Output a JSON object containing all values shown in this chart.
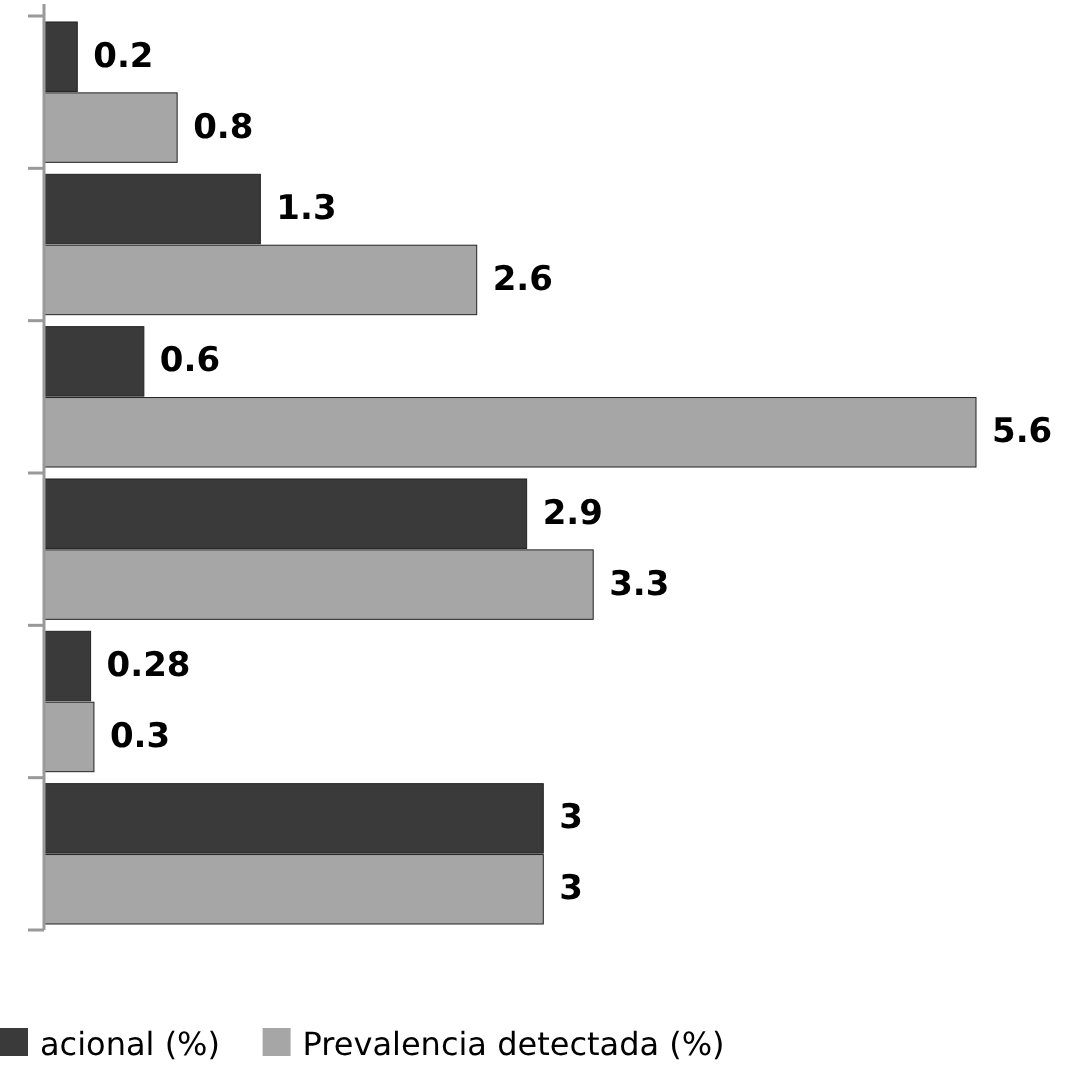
{
  "chart_data": {
    "type": "bar",
    "orientation": "horizontal",
    "categories": [
      null,
      null,
      null,
      null,
      null,
      null
    ],
    "series": [
      {
        "name": "acional (%)",
        "color": "#3a3a3a",
        "values": [
          0.2,
          1.3,
          0.6,
          2.9,
          0.28,
          3
        ]
      },
      {
        "name": "Prevalencia detectada (%)",
        "color": "#a6a6a6",
        "values": [
          0.8,
          2.6,
          5.6,
          3.3,
          0.3,
          3
        ]
      }
    ],
    "data_labels": true,
    "legend": "bottom",
    "grid": false
  }
}
